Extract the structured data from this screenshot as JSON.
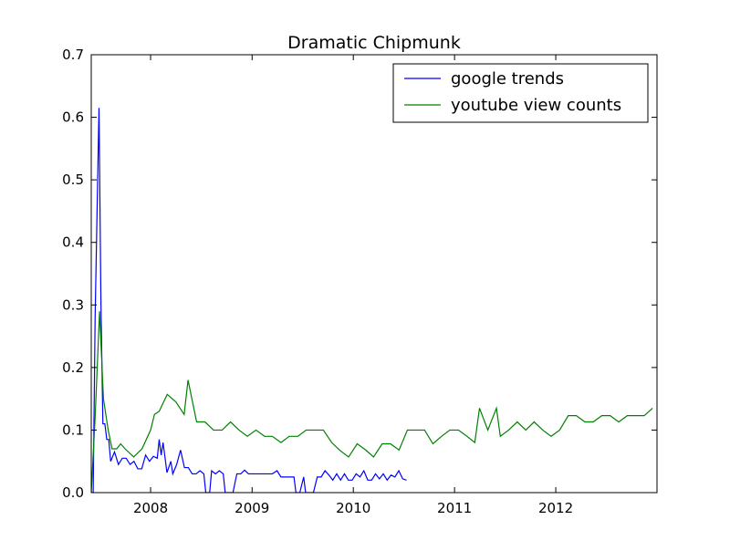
{
  "chart_data": {
    "type": "line",
    "title": "Dramatic Chipmunk",
    "xlabel": "",
    "ylabel": "",
    "xlim": [
      "2007-06-01",
      "2012-12-31"
    ],
    "ylim": [
      0,
      0.7
    ],
    "x_ticks": [
      "2008",
      "2009",
      "2010",
      "2011",
      "2012"
    ],
    "y_ticks": [
      "0.0",
      "0.1",
      "0.2",
      "0.3",
      "0.4",
      "0.5",
      "0.6",
      "0.7"
    ],
    "grid": false,
    "legend_position": "top-right",
    "series": [
      {
        "name": "google trends",
        "color": "#0000ff",
        "points": [
          [
            "2007-06-01",
            0.0
          ],
          [
            "2007-06-08",
            0.0
          ],
          [
            "2007-06-15",
            0.28
          ],
          [
            "2007-06-22",
            0.45
          ],
          [
            "2007-06-29",
            0.615
          ],
          [
            "2007-07-06",
            0.3
          ],
          [
            "2007-07-13",
            0.11
          ],
          [
            "2007-07-20",
            0.11
          ],
          [
            "2007-07-27",
            0.085
          ],
          [
            "2007-08-03",
            0.085
          ],
          [
            "2007-08-10",
            0.05
          ],
          [
            "2007-08-24",
            0.065
          ],
          [
            "2007-09-07",
            0.045
          ],
          [
            "2007-09-21",
            0.055
          ],
          [
            "2007-10-05",
            0.055
          ],
          [
            "2007-10-19",
            0.045
          ],
          [
            "2007-11-02",
            0.05
          ],
          [
            "2007-11-16",
            0.038
          ],
          [
            "2007-11-30",
            0.038
          ],
          [
            "2007-12-14",
            0.06
          ],
          [
            "2007-12-28",
            0.05
          ],
          [
            "2008-01-11",
            0.058
          ],
          [
            "2008-01-25",
            0.055
          ],
          [
            "2008-02-01",
            0.085
          ],
          [
            "2008-02-08",
            0.06
          ],
          [
            "2008-02-15",
            0.08
          ],
          [
            "2008-02-29",
            0.032
          ],
          [
            "2008-03-14",
            0.05
          ],
          [
            "2008-03-21",
            0.03
          ],
          [
            "2008-04-04",
            0.045
          ],
          [
            "2008-04-18",
            0.068
          ],
          [
            "2008-05-02",
            0.04
          ],
          [
            "2008-05-16",
            0.04
          ],
          [
            "2008-05-30",
            0.03
          ],
          [
            "2008-06-13",
            0.03
          ],
          [
            "2008-06-27",
            0.035
          ],
          [
            "2008-07-11",
            0.03
          ],
          [
            "2008-07-18",
            0.0
          ],
          [
            "2008-08-01",
            0.0
          ],
          [
            "2008-08-08",
            0.035
          ],
          [
            "2008-08-22",
            0.03
          ],
          [
            "2008-09-05",
            0.035
          ],
          [
            "2008-09-19",
            0.03
          ],
          [
            "2008-09-26",
            0.0
          ],
          [
            "2008-10-10",
            0.0
          ],
          [
            "2008-10-24",
            0.0
          ],
          [
            "2008-11-07",
            0.03
          ],
          [
            "2008-11-21",
            0.03
          ],
          [
            "2008-12-05",
            0.036
          ],
          [
            "2008-12-19",
            0.03
          ],
          [
            "2009-02-01",
            0.03
          ],
          [
            "2009-03-15",
            0.03
          ],
          [
            "2009-04-01",
            0.035
          ],
          [
            "2009-04-15",
            0.025
          ],
          [
            "2009-06-01",
            0.025
          ],
          [
            "2009-06-08",
            0.0
          ],
          [
            "2009-06-22",
            0.0
          ],
          [
            "2009-07-06",
            0.025
          ],
          [
            "2009-07-13",
            0.0
          ],
          [
            "2009-07-27",
            0.0
          ],
          [
            "2009-08-10",
            0.0
          ],
          [
            "2009-08-24",
            0.025
          ],
          [
            "2009-09-07",
            0.025
          ],
          [
            "2009-09-21",
            0.035
          ],
          [
            "2009-10-05",
            0.028
          ],
          [
            "2009-10-19",
            0.02
          ],
          [
            "2009-11-02",
            0.03
          ],
          [
            "2009-11-16",
            0.02
          ],
          [
            "2009-11-30",
            0.03
          ],
          [
            "2009-12-14",
            0.02
          ],
          [
            "2009-12-28",
            0.02
          ],
          [
            "2010-01-11",
            0.03
          ],
          [
            "2010-01-25",
            0.025
          ],
          [
            "2010-02-08",
            0.035
          ],
          [
            "2010-02-22",
            0.02
          ],
          [
            "2010-03-08",
            0.02
          ],
          [
            "2010-03-22",
            0.03
          ],
          [
            "2010-04-05",
            0.022
          ],
          [
            "2010-04-19",
            0.03
          ],
          [
            "2010-05-03",
            0.02
          ],
          [
            "2010-05-17",
            0.028
          ],
          [
            "2010-05-31",
            0.025
          ],
          [
            "2010-06-14",
            0.035
          ],
          [
            "2010-06-28",
            0.022
          ],
          [
            "2010-07-12",
            0.02
          ]
        ]
      },
      {
        "name": "youtube view counts",
        "color": "#008000",
        "points": [
          [
            "2007-06-01",
            0.0
          ],
          [
            "2007-06-15",
            0.12
          ],
          [
            "2007-07-01",
            0.29
          ],
          [
            "2007-07-15",
            0.15
          ],
          [
            "2007-08-01",
            0.1
          ],
          [
            "2007-08-15",
            0.07
          ],
          [
            "2007-09-01",
            0.07
          ],
          [
            "2007-09-15",
            0.078
          ],
          [
            "2007-10-01",
            0.07
          ],
          [
            "2007-11-01",
            0.057
          ],
          [
            "2007-12-01",
            0.07
          ],
          [
            "2008-01-01",
            0.1
          ],
          [
            "2008-01-15",
            0.125
          ],
          [
            "2008-02-01",
            0.13
          ],
          [
            "2008-03-01",
            0.157
          ],
          [
            "2008-04-01",
            0.145
          ],
          [
            "2008-05-01",
            0.125
          ],
          [
            "2008-05-15",
            0.18
          ],
          [
            "2008-06-15",
            0.113
          ],
          [
            "2008-07-15",
            0.113
          ],
          [
            "2008-08-15",
            0.1
          ],
          [
            "2008-09-15",
            0.1
          ],
          [
            "2008-10-15",
            0.113
          ],
          [
            "2008-11-15",
            0.1
          ],
          [
            "2008-12-15",
            0.09
          ],
          [
            "2009-01-15",
            0.1
          ],
          [
            "2009-02-15",
            0.09
          ],
          [
            "2009-03-15",
            0.09
          ],
          [
            "2009-04-15",
            0.08
          ],
          [
            "2009-05-15",
            0.09
          ],
          [
            "2009-06-15",
            0.09
          ],
          [
            "2009-07-15",
            0.1
          ],
          [
            "2009-08-15",
            0.1
          ],
          [
            "2009-09-15",
            0.1
          ],
          [
            "2009-10-15",
            0.08
          ],
          [
            "2009-11-15",
            0.067
          ],
          [
            "2009-12-15",
            0.057
          ],
          [
            "2010-01-15",
            0.078
          ],
          [
            "2010-02-15",
            0.068
          ],
          [
            "2010-03-15",
            0.057
          ],
          [
            "2010-04-15",
            0.078
          ],
          [
            "2010-05-15",
            0.078
          ],
          [
            "2010-06-15",
            0.068
          ],
          [
            "2010-07-15",
            0.1
          ],
          [
            "2010-08-15",
            0.1
          ],
          [
            "2010-09-15",
            0.1
          ],
          [
            "2010-10-15",
            0.078
          ],
          [
            "2010-11-15",
            0.09
          ],
          [
            "2010-12-15",
            0.1
          ],
          [
            "2011-01-15",
            0.1
          ],
          [
            "2011-02-15",
            0.09
          ],
          [
            "2011-03-15",
            0.08
          ],
          [
            "2011-04-01",
            0.135
          ],
          [
            "2011-05-01",
            0.1
          ],
          [
            "2011-06-01",
            0.135
          ],
          [
            "2011-06-15",
            0.09
          ],
          [
            "2011-07-15",
            0.1
          ],
          [
            "2011-08-15",
            0.113
          ],
          [
            "2011-09-15",
            0.1
          ],
          [
            "2011-10-15",
            0.113
          ],
          [
            "2011-11-15",
            0.1
          ],
          [
            "2011-12-15",
            0.09
          ],
          [
            "2012-01-15",
            0.1
          ],
          [
            "2012-02-15",
            0.123
          ],
          [
            "2012-03-15",
            0.123
          ],
          [
            "2012-04-15",
            0.113
          ],
          [
            "2012-05-15",
            0.113
          ],
          [
            "2012-06-15",
            0.123
          ],
          [
            "2012-07-15",
            0.123
          ],
          [
            "2012-08-15",
            0.113
          ],
          [
            "2012-09-15",
            0.123
          ],
          [
            "2012-10-15",
            0.123
          ],
          [
            "2012-11-15",
            0.123
          ],
          [
            "2012-12-15",
            0.135
          ]
        ]
      }
    ]
  }
}
